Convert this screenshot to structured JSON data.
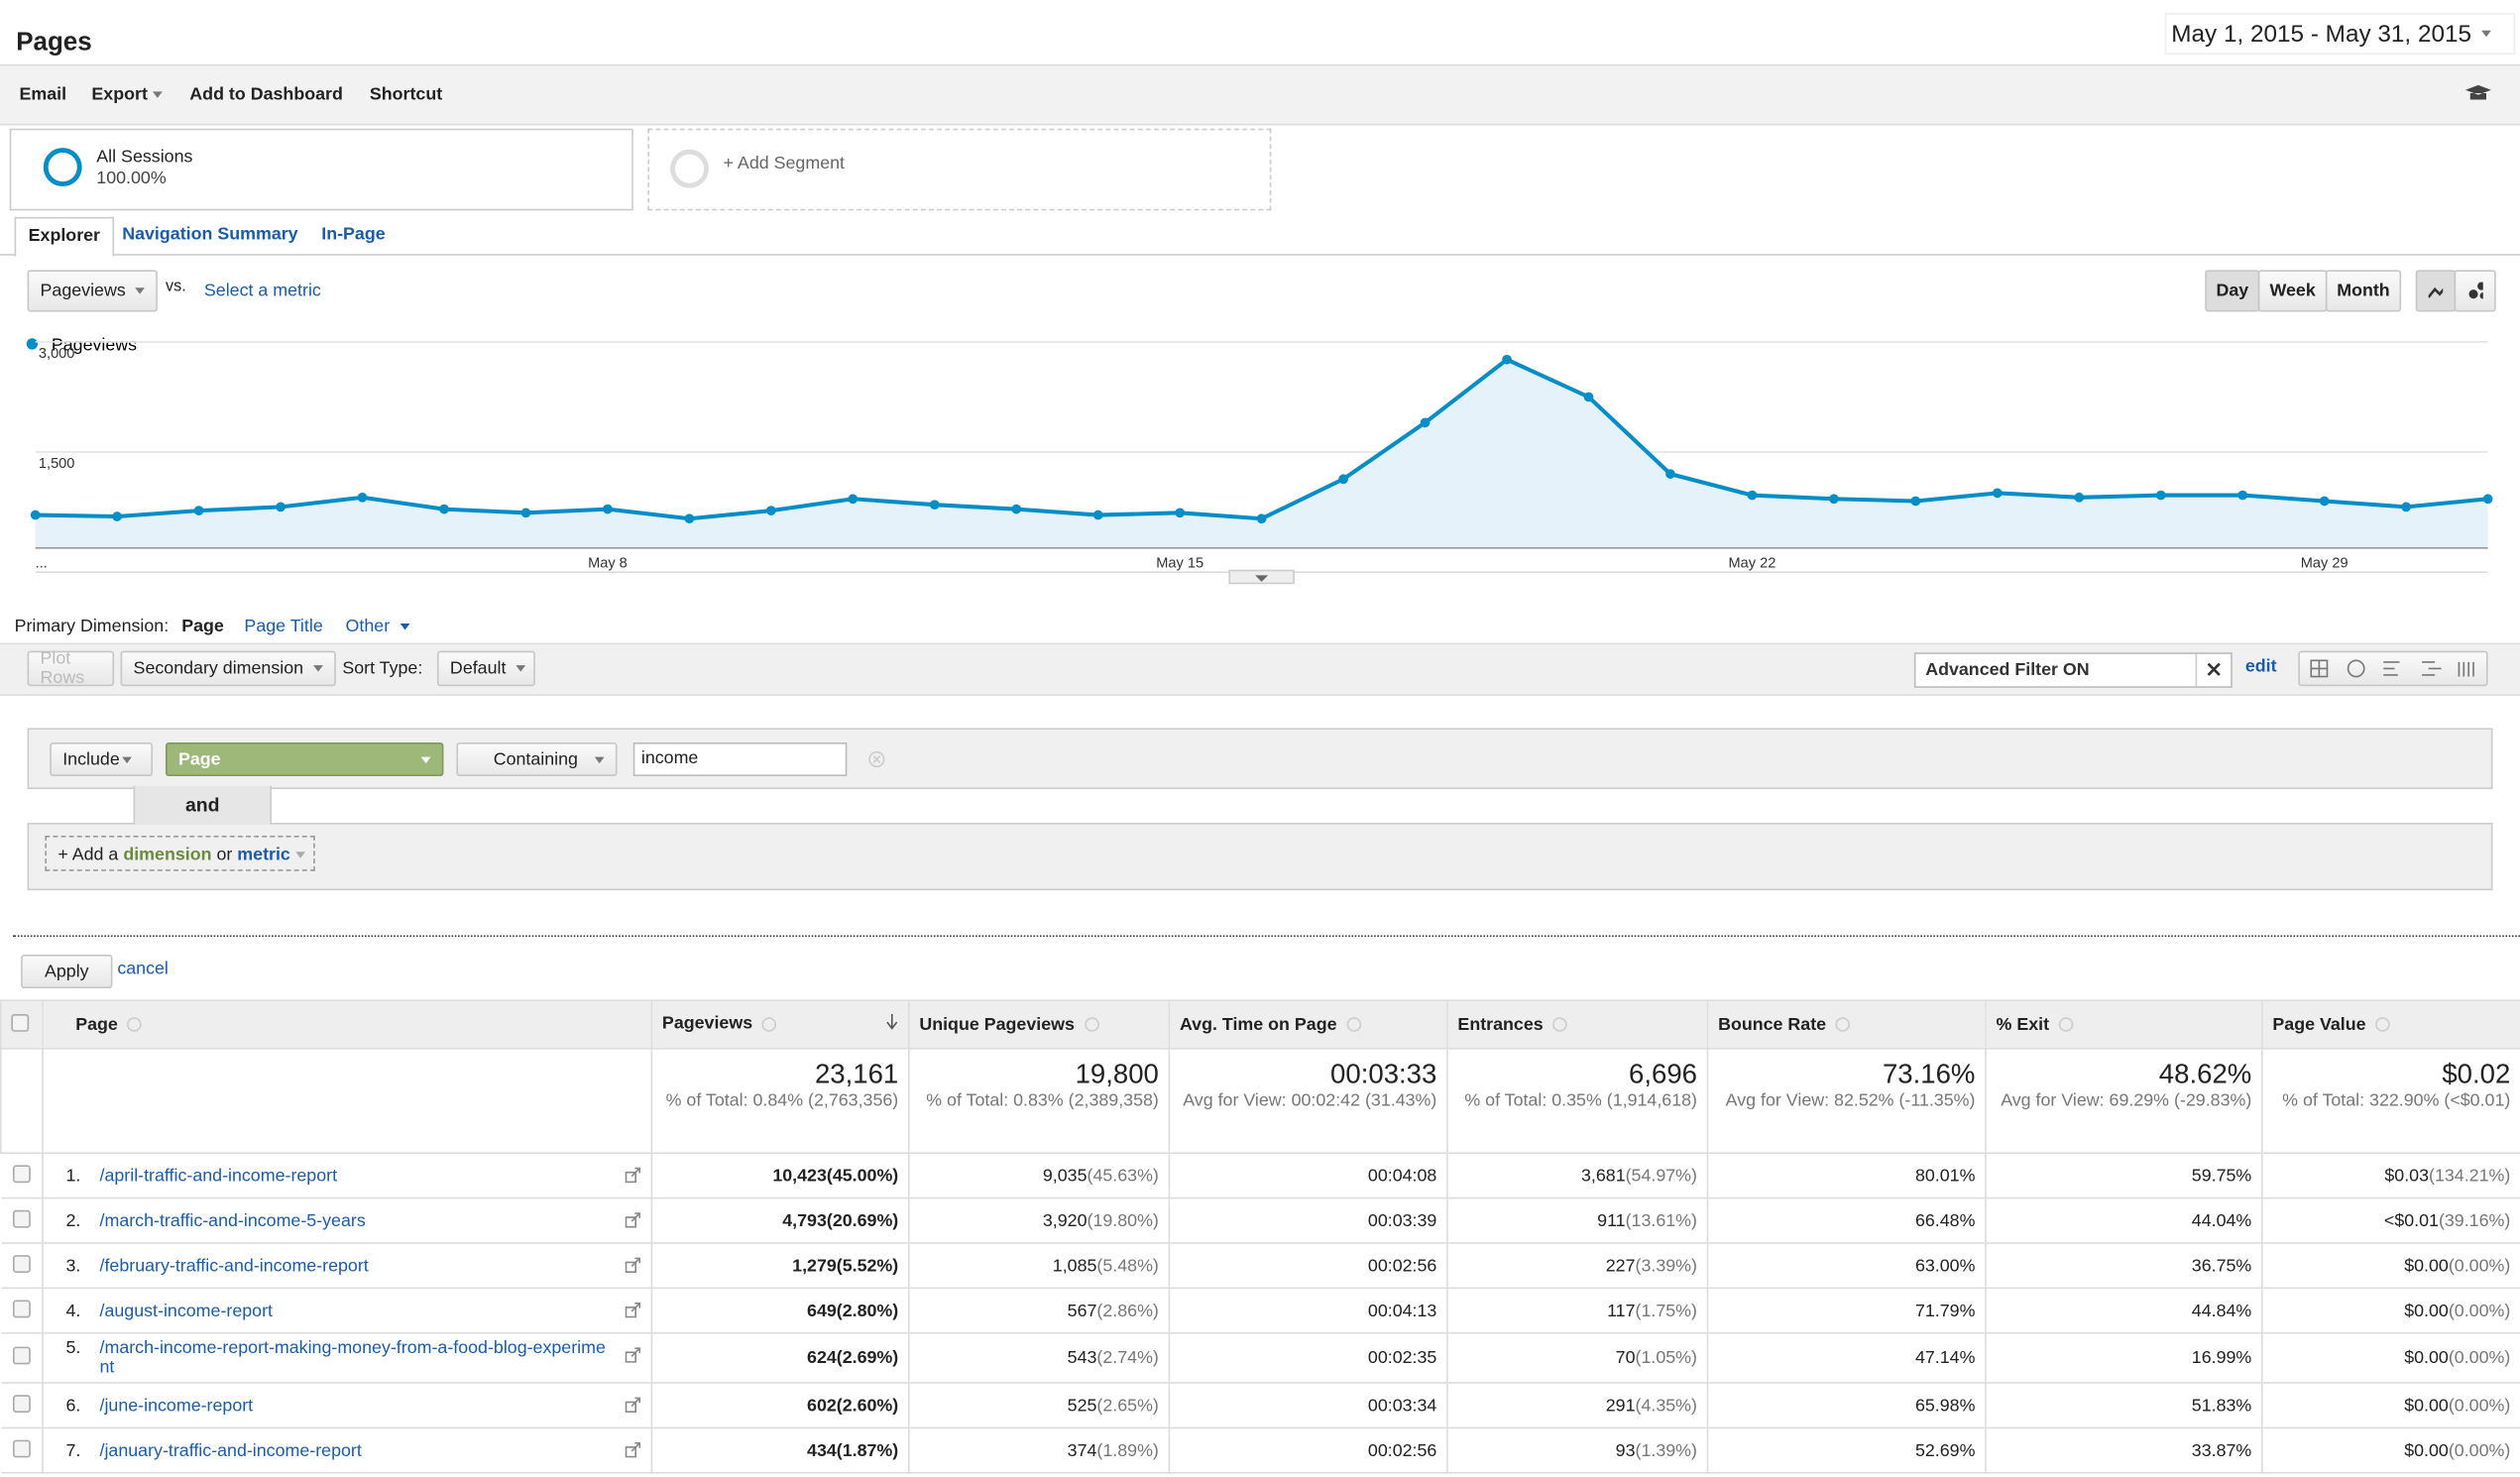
{
  "header": {
    "title": "Pages",
    "date_range": "May 1, 2015 - May 31, 2015"
  },
  "toolbar": [
    "Email",
    "Export",
    "Add to Dashboard",
    "Shortcut"
  ],
  "segments": {
    "name": "All Sessions",
    "share": "100.00%",
    "add": "+ Add Segment"
  },
  "tabs": [
    "Explorer",
    "Navigation Summary",
    "In-Page"
  ],
  "metric_selector": {
    "metric": "Pageviews",
    "vs": "vs.",
    "select": "Select a metric"
  },
  "granularity": [
    "Day",
    "Week",
    "Month"
  ],
  "chart_data": {
    "type": "line",
    "categories": [
      "...",
      null,
      null,
      null,
      null,
      null,
      null,
      "May 8",
      null,
      null,
      null,
      null,
      null,
      null,
      "May 15",
      null,
      null,
      null,
      null,
      null,
      null,
      "May 22",
      null,
      null,
      null,
      null,
      null,
      null,
      "May 29",
      null,
      null
    ],
    "series": [
      {
        "name": "Pageviews",
        "color": "#058dc7",
        "values": [
          640,
          620,
          700,
          750,
          880,
          720,
          670,
          720,
          590,
          700,
          860,
          780,
          720,
          640,
          670,
          590,
          1130,
          1900,
          2760,
          2250,
          1200,
          910,
          860,
          830,
          940,
          880,
          910,
          910,
          830,
          750,
          860
        ]
      }
    ],
    "ylim": [
      190,
      3210
    ],
    "yticks": [
      {
        "value": 1500,
        "label": "1,500"
      },
      {
        "value": 3000,
        "label": "3,000"
      }
    ],
    "grid": true
  },
  "dimension_bar": {
    "label": "Primary Dimension:",
    "options": [
      "Page",
      "Page Title",
      "Other"
    ]
  },
  "table_controls": {
    "plot_rows": "Plot Rows",
    "secondary": "Secondary dimension",
    "sort_label": "Sort Type:",
    "sort": "Default",
    "filter": "Advanced Filter ON",
    "edit": "edit"
  },
  "filter": {
    "include": "Include",
    "dimension": "Page",
    "match": "Containing",
    "value": "income",
    "and": "and",
    "add_prefix": "+ Add a",
    "add_dimension": "dimension",
    "add_or": "or",
    "add_metric": "metric",
    "apply": "Apply",
    "cancel": "cancel"
  },
  "table": {
    "columns": [
      "Page",
      "Pageviews",
      "Unique Pageviews",
      "Avg. Time on Page",
      "Entrances",
      "Bounce Rate",
      "% Exit",
      "Page Value"
    ],
    "totals": [
      {
        "value": "23,161",
        "note": "% of Total: 0.84% (2,763,356)"
      },
      {
        "value": "19,800",
        "note": "% of Total: 0.83% (2,389,358)"
      },
      {
        "value": "00:03:33",
        "note": "Avg for View: 00:02:42 (31.43%)"
      },
      {
        "value": "6,696",
        "note": "% of Total: 0.35% (1,914,618)"
      },
      {
        "value": "73.16%",
        "note": "Avg for View: 82.52% (-11.35%)"
      },
      {
        "value": "48.62%",
        "note": "Avg for View: 69.29% (-29.83%)"
      },
      {
        "value": "$0.02",
        "note": "% of Total: 322.90% (<$0.01)"
      }
    ],
    "rows": [
      [
        "1.",
        "/april-traffic-and-income-report",
        "10,423",
        "(45.00%)",
        "9,035",
        "(45.63%)",
        "00:04:08",
        "3,681",
        "(54.97%)",
        "80.01%",
        "59.75%",
        "$0.03",
        "(134.21%)"
      ],
      [
        "2.",
        "/march-traffic-and-income-5-years",
        "4,793",
        "(20.69%)",
        "3,920",
        "(19.80%)",
        "00:03:39",
        "911",
        "(13.61%)",
        "66.48%",
        "44.04%",
        "<$0.01",
        "(39.16%)"
      ],
      [
        "3.",
        "/february-traffic-and-income-report",
        "1,279",
        "(5.52%)",
        "1,085",
        "(5.48%)",
        "00:02:56",
        "227",
        "(3.39%)",
        "63.00%",
        "36.75%",
        "$0.00",
        "(0.00%)"
      ],
      [
        "4.",
        "/august-income-report",
        "649",
        "(2.80%)",
        "567",
        "(2.86%)",
        "00:04:13",
        "117",
        "(1.75%)",
        "71.79%",
        "44.84%",
        "$0.00",
        "(0.00%)"
      ],
      [
        "5.",
        "/march-income-report-making-money-from-a-food-blog-experiment",
        "624",
        "(2.69%)",
        "543",
        "(2.74%)",
        "00:02:35",
        "70",
        "(1.05%)",
        "47.14%",
        "16.99%",
        "$0.00",
        "(0.00%)"
      ],
      [
        "6.",
        "/june-income-report",
        "602",
        "(2.60%)",
        "525",
        "(2.65%)",
        "00:03:34",
        "291",
        "(4.35%)",
        "65.98%",
        "51.83%",
        "$0.00",
        "(0.00%)"
      ],
      [
        "7.",
        "/january-traffic-and-income-report",
        "434",
        "(1.87%)",
        "374",
        "(1.89%)",
        "00:02:56",
        "93",
        "(1.39%)",
        "52.69%",
        "33.87%",
        "$0.00",
        "(0.00%)"
      ]
    ]
  }
}
